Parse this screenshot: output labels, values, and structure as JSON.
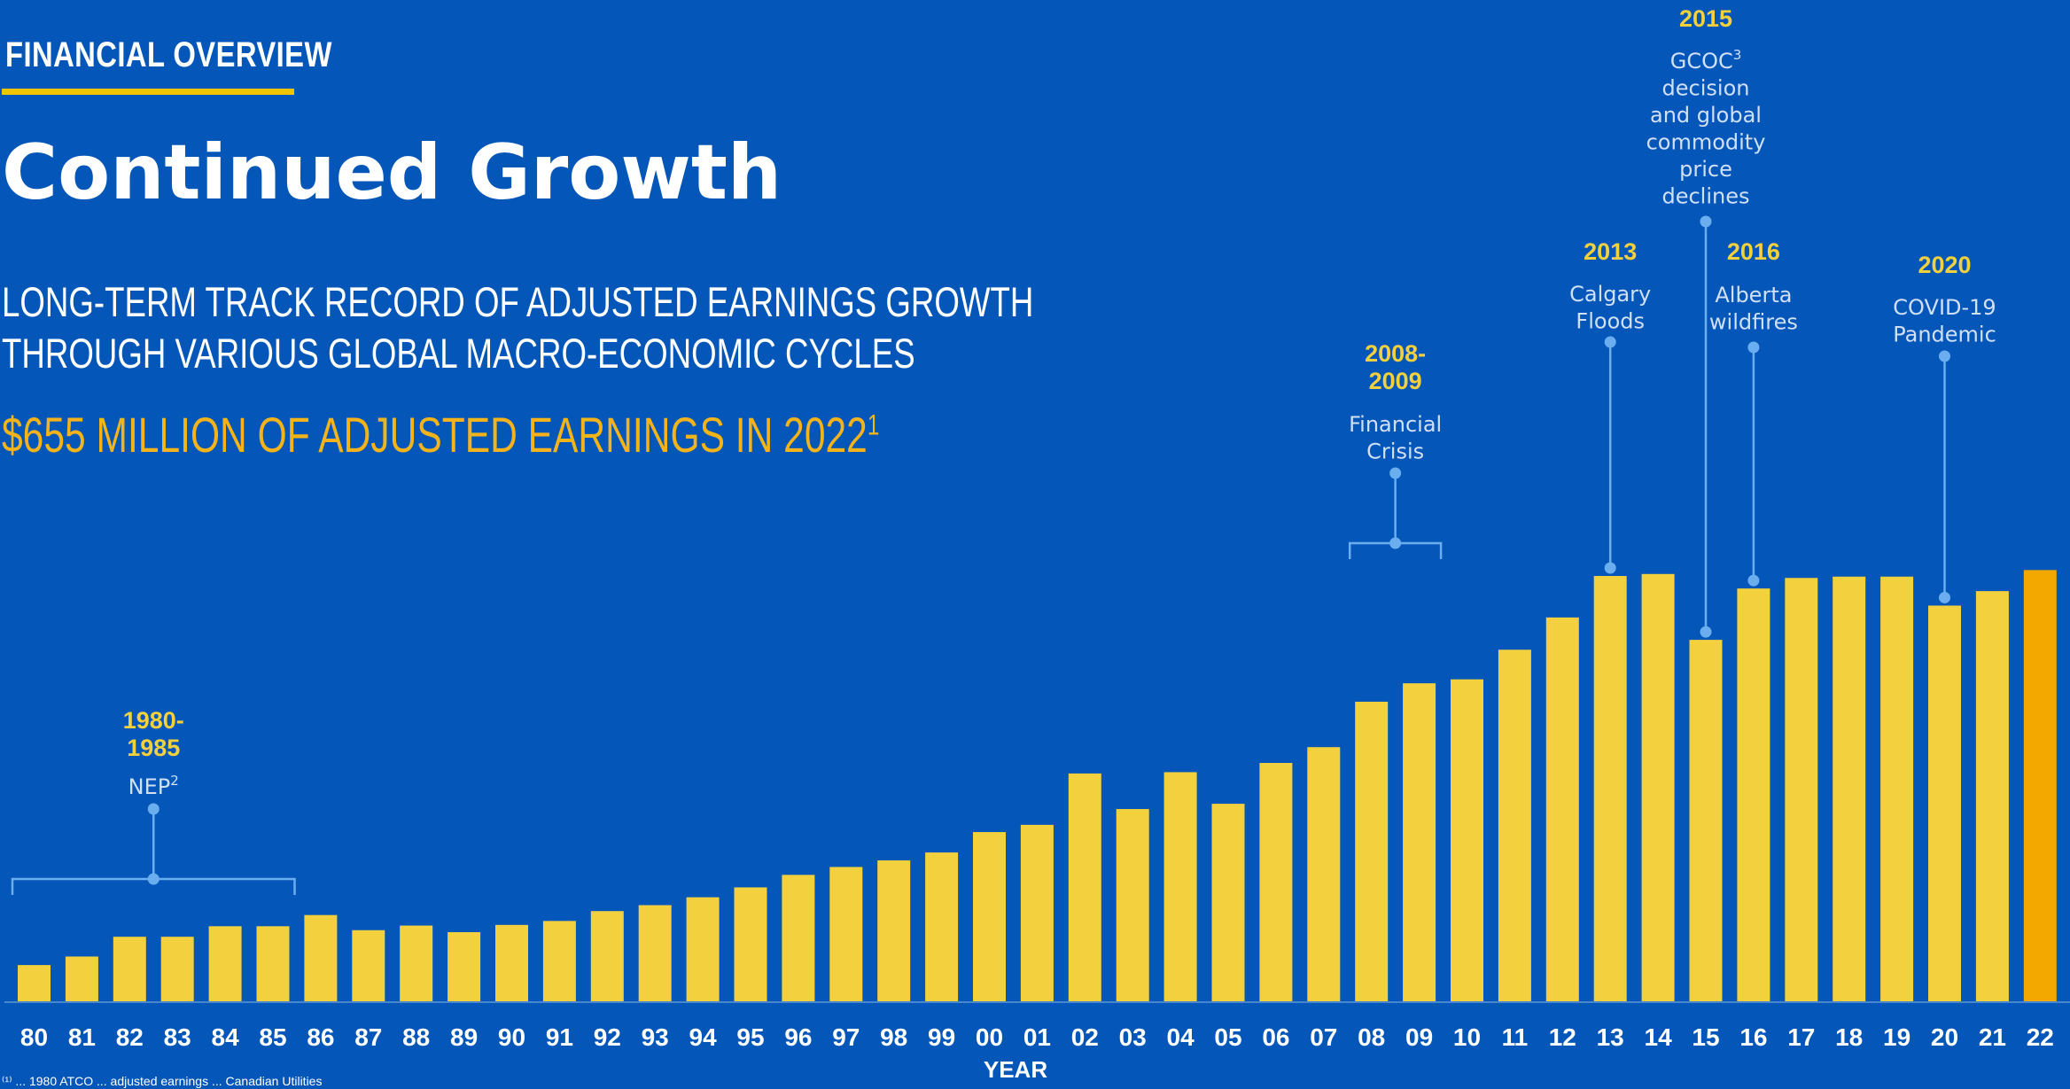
{
  "header": {
    "kicker": "FINANCIAL OVERVIEW",
    "title": "Continued Growth",
    "subtitle_line1": "LONG-TERM TRACK RECORD OF ADJUSTED EARNINGS GROWTH",
    "subtitle_line2": "THROUGH VARIOUS GLOBAL MACRO-ECONOMIC CYCLES",
    "highlight": "$655 MILLION OF ADJUSTED EARNINGS IN 2022",
    "highlight_sup": "1"
  },
  "footnote": "⁽¹⁾ ... 1980 ATCO ... adjusted earnings ... Canadian Utilities",
  "colors": {
    "background": "#0456b8",
    "bar": "#f3d03e",
    "bar_highlight": "#f3a800",
    "annotation_year": "#f3d03e",
    "annotation_text": "#cfe0f7",
    "marker": "#6aaef0",
    "axis_text": "#ffffff"
  },
  "chart_data": {
    "type": "bar",
    "xlabel": "YEAR",
    "ylabel": "",
    "ylim": [
      0,
      720
    ],
    "y_axis_shown": false,
    "grid": false,
    "categories": [
      "80",
      "81",
      "82",
      "83",
      "84",
      "85",
      "86",
      "87",
      "88",
      "89",
      "90",
      "91",
      "92",
      "93",
      "94",
      "95",
      "96",
      "97",
      "98",
      "99",
      "00",
      "01",
      "02",
      "03",
      "04",
      "05",
      "06",
      "07",
      "08",
      "09",
      "10",
      "11",
      "12",
      "13",
      "14",
      "15",
      "16",
      "17",
      "18",
      "19",
      "20",
      "21",
      "22"
    ],
    "values": [
      55,
      68,
      98,
      98,
      114,
      114,
      131,
      108,
      115,
      105,
      116,
      122,
      137,
      146,
      158,
      173,
      192,
      204,
      214,
      226,
      257,
      268,
      346,
      292,
      348,
      300,
      362,
      386,
      455,
      483,
      489,
      534,
      583,
      646,
      649,
      549,
      627,
      643,
      645,
      645,
      601,
      623,
      655
    ],
    "highlighted_category": "22",
    "annotations": [
      {
        "year": "1980-\n1985",
        "text": "NEP",
        "sup": "2",
        "span": [
          "80",
          "85"
        ]
      },
      {
        "year": "2008-\n2009",
        "text": "Financial\nCrisis",
        "span": [
          "08",
          "09"
        ]
      },
      {
        "year": "2013",
        "text": "Calgary\nFloods",
        "at": "13"
      },
      {
        "year": "2015",
        "text": "GCOC\ndecision\nand global\ncommodity\nprice\ndeclines",
        "sup": "3",
        "at": "15"
      },
      {
        "year": "2016",
        "text": "Alberta\nwildfires",
        "at": "16"
      },
      {
        "year": "2020",
        "text": "COVID-19\nPandemic",
        "at": "20"
      }
    ]
  }
}
